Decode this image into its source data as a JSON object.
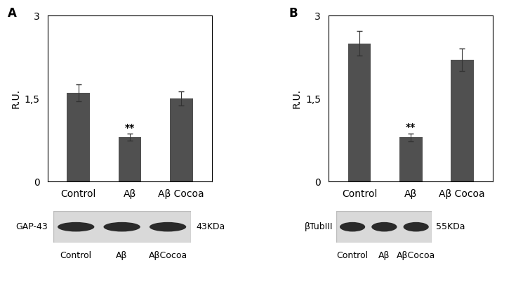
{
  "chart_data": [
    {
      "type": "bar",
      "title": "A",
      "y_label": "R.U.",
      "categories": [
        "Control",
        "Aβ",
        "Aβ Cocoa"
      ],
      "values": [
        1.6,
        0.8,
        1.5
      ],
      "errors": [
        0.15,
        0.06,
        0.13
      ],
      "color": "#505050",
      "ylim": [
        0,
        3
      ],
      "yticks": [
        0,
        {
          "value": 1.5,
          "label": "1,5"
        },
        3
      ],
      "annotations": [
        {
          "text": "**",
          "category": "Aβ"
        }
      ],
      "blot": {
        "label": "GAP-43",
        "size": "43KDa",
        "lanes": [
          "Control",
          "Aβ",
          "AβCocoa"
        ]
      }
    },
    {
      "type": "bar",
      "title": "B",
      "y_label": "R.U.",
      "categories": [
        "Control",
        "Aβ",
        "Aβ Cocoa"
      ],
      "values": [
        2.5,
        0.8,
        2.2
      ],
      "errors": [
        0.22,
        0.07,
        0.2
      ],
      "color": "#505050",
      "ylim": [
        0,
        3
      ],
      "yticks": [
        0,
        {
          "value": 1.5,
          "label": "1,5"
        },
        3
      ],
      "annotations": [
        {
          "text": "**",
          "category": "Aβ"
        }
      ],
      "blot": {
        "label": "βTubIII",
        "size": "55KDa",
        "lanes": [
          "Control",
          "Aβ",
          "AβCocoa"
        ]
      }
    }
  ]
}
